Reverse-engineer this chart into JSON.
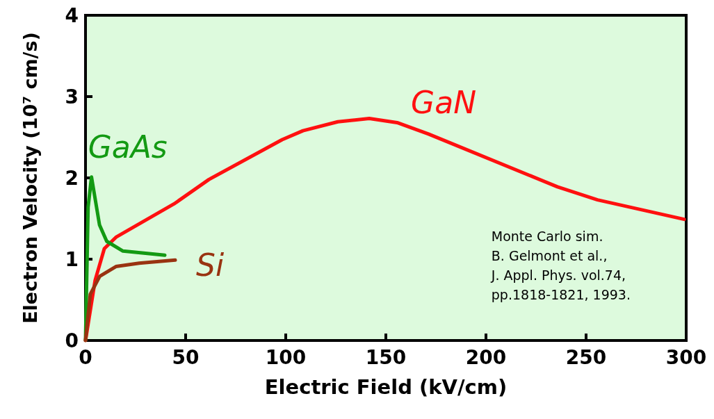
{
  "chart_data": {
    "type": "line",
    "xlabel": "Electric Field (kV/cm)",
    "ylabel": "Electron Velocity (10⁷ cm/s)",
    "xlim": [
      0,
      300
    ],
    "xticks": [
      0,
      50,
      100,
      150,
      200,
      250,
      300
    ],
    "ylim": [
      0,
      4
    ],
    "yticks": [
      0,
      1,
      2,
      3,
      4
    ],
    "grid": false,
    "legend": false,
    "marker": "none",
    "line_style": "solid",
    "annotations": [
      "Monte Carlo sim.\nB. Gelmont et al.,\nJ. Appl. Phys. vol.74,\npp.1818-1821, 1993."
    ],
    "series": [
      {
        "name": "GaN",
        "color": "#ff1010",
        "x": [
          0,
          4.8,
          9.4,
          15.2,
          44.2,
          61.6,
          98.2,
          108.6,
          126,
          141.7,
          155.6,
          171.3,
          235.7,
          255.7,
          299
        ],
        "values": [
          0,
          0.74,
          1.13,
          1.27,
          1.68,
          1.98,
          2.47,
          2.58,
          2.69,
          2.73,
          2.68,
          2.54,
          1.89,
          1.73,
          1.49
        ]
      },
      {
        "name": "GaAs",
        "color": "#139a13",
        "x": [
          0,
          1.3,
          3,
          7,
          10.6,
          18.7,
          39.6
        ],
        "values": [
          0,
          1.64,
          2.01,
          1.42,
          1.22,
          1.1,
          1.05
        ]
      },
      {
        "name": "Si",
        "color": "#993311",
        "x": [
          0,
          2.4,
          7.1,
          15.2,
          26.8,
          44.8
        ],
        "values": [
          0,
          0.57,
          0.79,
          0.91,
          0.95,
          0.99
        ]
      }
    ]
  }
}
